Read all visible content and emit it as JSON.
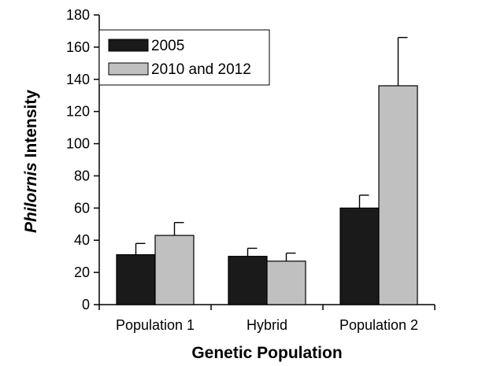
{
  "chart_data": {
    "type": "bar",
    "categories": [
      "Population 1",
      "Hybrid",
      "Population 2"
    ],
    "series": [
      {
        "name": "2005",
        "values": [
          31,
          30,
          60
        ],
        "errors": [
          7,
          5,
          8
        ],
        "color": "#1a1a1a"
      },
      {
        "name": "2010 and 2012",
        "values": [
          43,
          27,
          136
        ],
        "errors": [
          8,
          5,
          30
        ],
        "color": "#c0c0c0"
      }
    ],
    "title": "",
    "xlabel": "Genetic Population",
    "ylabel": {
      "italic": "Philornis",
      "rest": " Intensity"
    },
    "ylim": [
      0,
      180
    ],
    "yticks": [
      0,
      20,
      40,
      60,
      80,
      100,
      120,
      140,
      160,
      180
    ],
    "grid": false,
    "legend_position": "top-left",
    "error_bars": "upper"
  }
}
